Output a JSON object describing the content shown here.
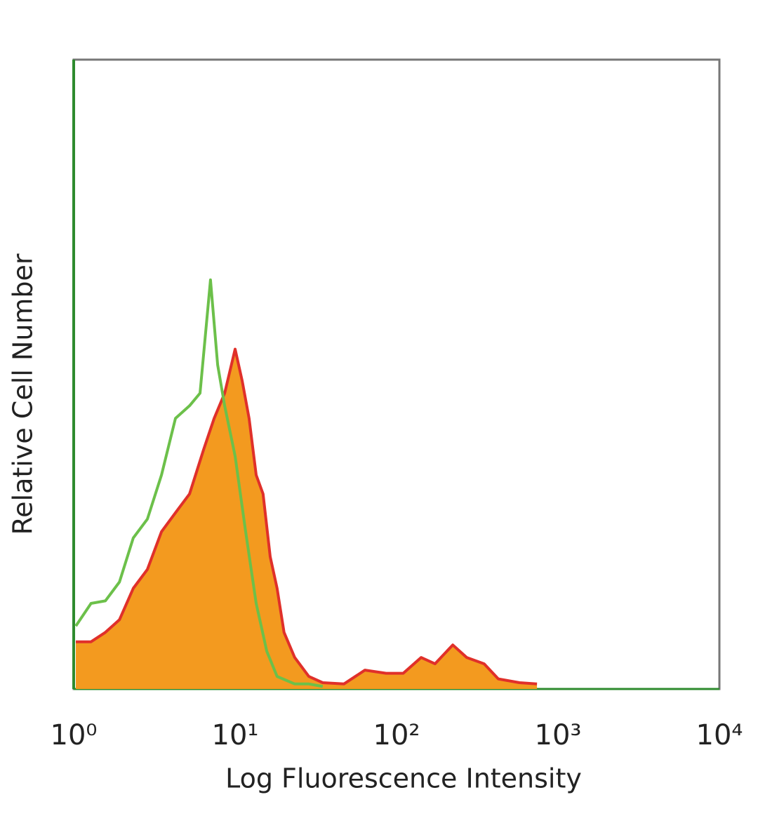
{
  "chart_data": {
    "type": "histogram-overlay",
    "x_label": "Log Fluorescence Intensity",
    "y_label": "Relative Cell Number",
    "xscale": "log",
    "xlim": [
      1,
      10000
    ],
    "xticks": [
      {
        "value": 1,
        "label": "10⁰"
      },
      {
        "value": 10,
        "label": "10¹"
      },
      {
        "value": 100,
        "label": "10²"
      },
      {
        "value": 1000,
        "label": "10³"
      },
      {
        "value": 10000,
        "label": "10⁴"
      }
    ],
    "ylim": [
      0,
      100
    ],
    "series": [
      {
        "color": "#e0302a",
        "fill": "#f39a1f",
        "x": [
          1.03,
          1.28,
          1.57,
          1.92,
          2.34,
          2.86,
          3.5,
          4.27,
          5.22,
          6.37,
          7.41,
          8.61,
          10,
          11.05,
          12.2,
          13.5,
          14.9,
          16.5,
          18.2,
          20.1,
          23.4,
          28.6,
          34.9,
          47.2,
          63.7,
          86.1,
          110,
          142,
          173,
          223,
          272,
          349,
          427,
          577,
          741
        ],
        "values": [
          7.5,
          7.5,
          9,
          11,
          16,
          19,
          25,
          28,
          31,
          38,
          43,
          47,
          54,
          49,
          43,
          34,
          31,
          21,
          16,
          9,
          5,
          2,
          1,
          0.8,
          3,
          2.5,
          2.5,
          5,
          4,
          7,
          5,
          4,
          1.6,
          1,
          0.8
        ]
      },
      {
        "color": "#6cc04a",
        "x": [
          1.03,
          1.28,
          1.57,
          1.92,
          2.34,
          2.86,
          3.5,
          4.27,
          5.22,
          6.06,
          7.04,
          7.79,
          8.61,
          10,
          11.62,
          13.5,
          15.7,
          18.2,
          23.4,
          28.6,
          34.9
        ],
        "values": [
          10,
          13.6,
          14,
          17,
          24,
          27,
          34,
          43,
          45,
          47,
          65,
          51.5,
          45,
          37,
          25,
          13.6,
          6,
          2,
          0.8,
          0.8,
          0.4
        ]
      }
    ]
  }
}
